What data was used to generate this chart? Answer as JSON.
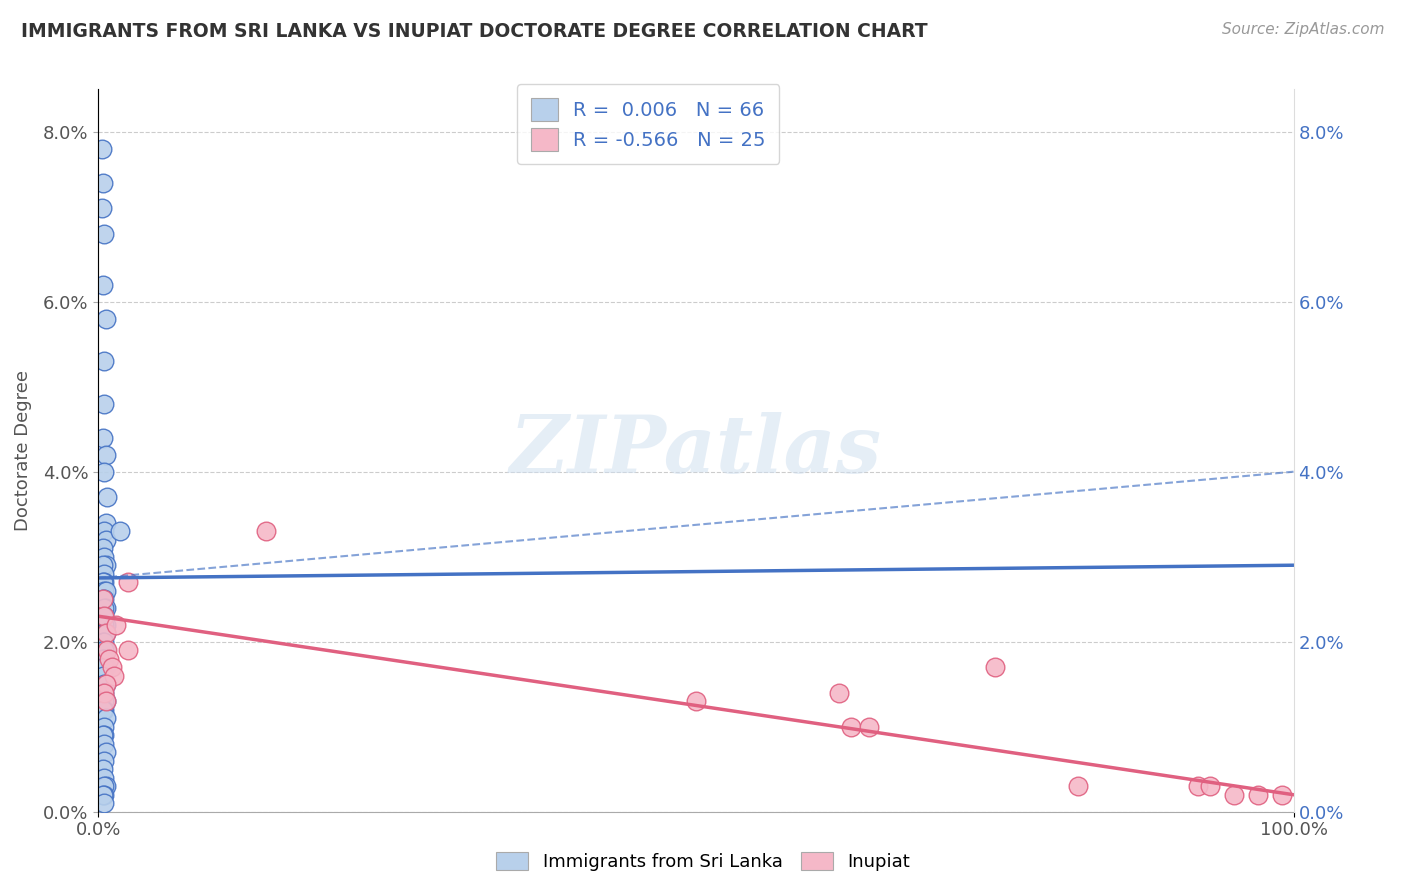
{
  "title": "IMMIGRANTS FROM SRI LANKA VS INUPIAT DOCTORATE DEGREE CORRELATION CHART",
  "source": "Source: ZipAtlas.com",
  "ylabel": "Doctorate Degree",
  "watermark": "ZIPatlas",
  "legend_label1": "Immigrants from Sri Lanka",
  "legend_label2": "Inupiat",
  "R1": 0.006,
  "N1": 66,
  "R2": -0.566,
  "N2": 25,
  "color1": "#b8d0eb",
  "color2": "#f5b8c8",
  "line_color1": "#4472c4",
  "line_color2": "#e06080",
  "xlim": [
    0,
    100
  ],
  "ylim": [
    0,
    8.5
  ],
  "ytick_labels": [
    "0.0%",
    "2.0%",
    "4.0%",
    "6.0%",
    "8.0%"
  ],
  "ytick_vals": [
    0,
    2,
    4,
    6,
    8
  ],
  "xtick_labels": [
    "0.0%",
    "100.0%"
  ],
  "xtick_vals": [
    0,
    100
  ],
  "blue_scatter_x": [
    0.3,
    0.4,
    0.3,
    0.5,
    0.4,
    0.6,
    0.5,
    0.5,
    0.4,
    0.6,
    0.5,
    0.7,
    0.6,
    0.5,
    0.6,
    0.4,
    0.5,
    0.6,
    0.4,
    0.5,
    0.5,
    0.4,
    0.5,
    0.6,
    0.5,
    0.4,
    0.6,
    0.5,
    0.5,
    0.4,
    0.6,
    0.5,
    0.5,
    0.6,
    0.4,
    0.5,
    0.6,
    0.5,
    0.5,
    0.4,
    0.6,
    0.5,
    0.4,
    0.5,
    0.6,
    0.4,
    0.5,
    0.6,
    0.5,
    0.5,
    0.4,
    0.6,
    0.5,
    0.5,
    0.4,
    0.5,
    0.6,
    0.5,
    0.4,
    0.5,
    0.6,
    0.5,
    0.5,
    0.4,
    0.5,
    1.8
  ],
  "blue_scatter_y": [
    7.8,
    7.4,
    7.1,
    6.8,
    6.2,
    5.8,
    5.3,
    4.8,
    4.4,
    4.2,
    4.0,
    3.7,
    3.4,
    3.3,
    3.2,
    3.1,
    3.0,
    2.9,
    2.9,
    2.8,
    2.7,
    2.7,
    2.6,
    2.6,
    2.5,
    2.5,
    2.4,
    2.4,
    2.3,
    2.3,
    2.2,
    2.2,
    2.1,
    2.1,
    2.0,
    2.0,
    1.9,
    1.9,
    1.8,
    1.8,
    1.7,
    1.7,
    1.6,
    1.5,
    1.5,
    1.4,
    1.4,
    1.3,
    1.3,
    1.2,
    1.2,
    1.1,
    1.0,
    0.9,
    0.9,
    0.8,
    0.7,
    0.6,
    0.5,
    0.4,
    0.3,
    0.3,
    0.2,
    0.2,
    0.1,
    3.3
  ],
  "pink_scatter_x": [
    0.4,
    0.5,
    0.6,
    0.7,
    0.9,
    1.1,
    1.3,
    1.5,
    0.6,
    0.5,
    0.6,
    14.0,
    2.5,
    2.5,
    50.0,
    62.0,
    63.0,
    64.5,
    75.0,
    82.0,
    92.0,
    93.0,
    95.0,
    97.0,
    99.0
  ],
  "pink_scatter_y": [
    2.5,
    2.3,
    2.1,
    1.9,
    1.8,
    1.7,
    1.6,
    2.2,
    1.5,
    1.4,
    1.3,
    3.3,
    2.7,
    1.9,
    1.3,
    1.4,
    1.0,
    1.0,
    1.7,
    0.3,
    0.3,
    0.3,
    0.2,
    0.2,
    0.2
  ],
  "blue_line_x0": 0,
  "blue_line_x1": 100,
  "blue_line_y0": 2.75,
  "blue_line_y1": 2.9,
  "blue_dash_y0": 2.75,
  "blue_dash_y1": 4.0,
  "pink_line_y0": 2.3,
  "pink_line_y1": 0.2
}
